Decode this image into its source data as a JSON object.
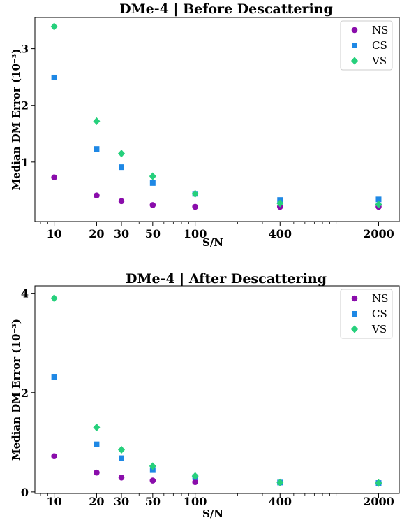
{
  "colors": {
    "NS": "#8a0dab",
    "CS": "#1e88e5",
    "VS": "#26d07c"
  },
  "chart_data": [
    {
      "type": "scatter",
      "title": "DMe-4 | Before Descattering",
      "xlabel": "S/N",
      "ylabel": "Median DM Error (10⁻³)",
      "xscale": "log",
      "x": [
        10,
        20,
        30,
        50,
        100,
        400,
        2000
      ],
      "xticks": [
        "10",
        "20",
        "30",
        "50",
        "100",
        "400",
        "2000"
      ],
      "ylim": [
        -0.05,
        3.55
      ],
      "yticks": [
        "1",
        "2",
        "3"
      ],
      "grid": false,
      "legend_position": "top-right",
      "series": [
        {
          "name": "NS",
          "marker": "circle",
          "values": [
            0.73,
            0.41,
            0.31,
            0.24,
            0.21,
            0.21,
            0.21
          ]
        },
        {
          "name": "CS",
          "marker": "square",
          "values": [
            2.49,
            1.23,
            0.91,
            0.63,
            0.44,
            0.33,
            0.34
          ]
        },
        {
          "name": "VS",
          "marker": "diamond",
          "values": [
            3.39,
            1.72,
            1.15,
            0.75,
            0.44,
            0.27,
            0.25
          ]
        }
      ]
    },
    {
      "type": "scatter",
      "title": "DMe-4 | After  Descattering",
      "xlabel": "S/N",
      "ylabel": "Median DM Error (10⁻³)",
      "xscale": "log",
      "x": [
        10,
        20,
        30,
        50,
        100,
        400,
        2000
      ],
      "xticks": [
        "10",
        "20",
        "30",
        "50",
        "100",
        "400",
        "2000"
      ],
      "ylim": [
        -0.03,
        4.15
      ],
      "yticks": [
        "0",
        "2",
        "4"
      ],
      "grid": false,
      "legend_position": "top-right",
      "series": [
        {
          "name": "NS",
          "marker": "circle",
          "values": [
            0.72,
            0.39,
            0.29,
            0.23,
            0.2,
            0.19,
            0.18
          ]
        },
        {
          "name": "CS",
          "marker": "square",
          "values": [
            2.32,
            0.96,
            0.68,
            0.44,
            0.3,
            0.19,
            0.18
          ]
        },
        {
          "name": "VS",
          "marker": "diamond",
          "values": [
            3.9,
            1.3,
            0.85,
            0.52,
            0.32,
            0.19,
            0.18
          ]
        }
      ]
    }
  ]
}
